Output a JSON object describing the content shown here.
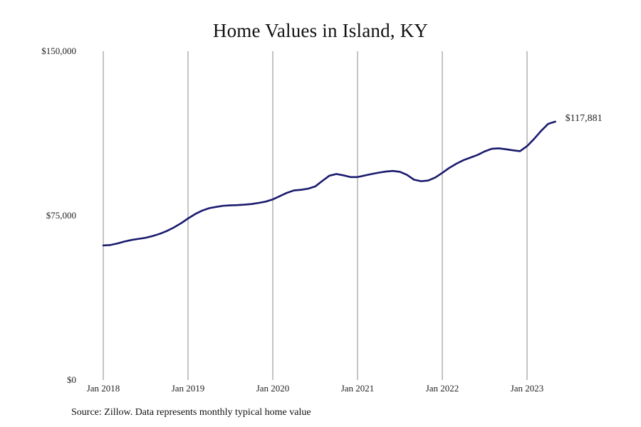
{
  "chart_data": {
    "type": "line",
    "title": "Home Values in Island, KY",
    "xlabel": "",
    "ylabel": "",
    "x_tick_labels": [
      "Jan 2018",
      "Jan 2019",
      "Jan 2020",
      "Jan 2021",
      "Jan 2022",
      "Jan 2023"
    ],
    "y_tick_labels": [
      "$0",
      "$75,000",
      "$150,000"
    ],
    "y_ticks": [
      0,
      75000,
      150000
    ],
    "ylim": [
      0,
      150000
    ],
    "xlim": [
      "2018-01",
      "2023-12"
    ],
    "grid": "vertical lines at yearly ticks",
    "line_color": "#1a1a6e",
    "grid_color": "#888888",
    "end_label": "$117,881",
    "series": [
      {
        "x": [
          "2018-01",
          "2018-02",
          "2018-03",
          "2018-04",
          "2018-05",
          "2018-06",
          "2018-07",
          "2018-08",
          "2018-09",
          "2018-10",
          "2018-11",
          "2018-12",
          "2019-01",
          "2019-02",
          "2019-03",
          "2019-04",
          "2019-05",
          "2019-06",
          "2019-07",
          "2019-08",
          "2019-09",
          "2019-10",
          "2019-11",
          "2019-12",
          "2020-01",
          "2020-02",
          "2020-03",
          "2020-04",
          "2020-05",
          "2020-06",
          "2020-07",
          "2020-08",
          "2020-09",
          "2020-10",
          "2020-11",
          "2020-12",
          "2021-01",
          "2021-02",
          "2021-03",
          "2021-04",
          "2021-05",
          "2021-06",
          "2021-07",
          "2021-08",
          "2021-09",
          "2021-10",
          "2021-11",
          "2021-12",
          "2022-01",
          "2022-02",
          "2022-03",
          "2022-04",
          "2022-05",
          "2022-06",
          "2022-07",
          "2022-08",
          "2022-09",
          "2022-10",
          "2022-11",
          "2022-12",
          "2023-01",
          "2023-02",
          "2023-03",
          "2023-04",
          "2023-05"
        ],
        "values": [
          61400,
          61600,
          62300,
          63200,
          63900,
          64400,
          64900,
          65700,
          66700,
          68000,
          69600,
          71500,
          73700,
          75700,
          77300,
          78400,
          79000,
          79500,
          79700,
          79800,
          80000,
          80300,
          80800,
          81400,
          82400,
          83900,
          85400,
          86500,
          86800,
          87300,
          88300,
          90800,
          93200,
          94000,
          93400,
          92600,
          92600,
          93300,
          94000,
          94600,
          95100,
          95400,
          95000,
          93600,
          91400,
          90700,
          91000,
          92400,
          94500,
          96800,
          98700,
          100300,
          101500,
          102700,
          104300,
          105500,
          105700,
          105300,
          104800,
          104400,
          106700,
          110000,
          113700,
          116900,
          117881
        ]
      }
    ]
  },
  "source_note": "Source: Zillow. Data represents monthly typical home value"
}
